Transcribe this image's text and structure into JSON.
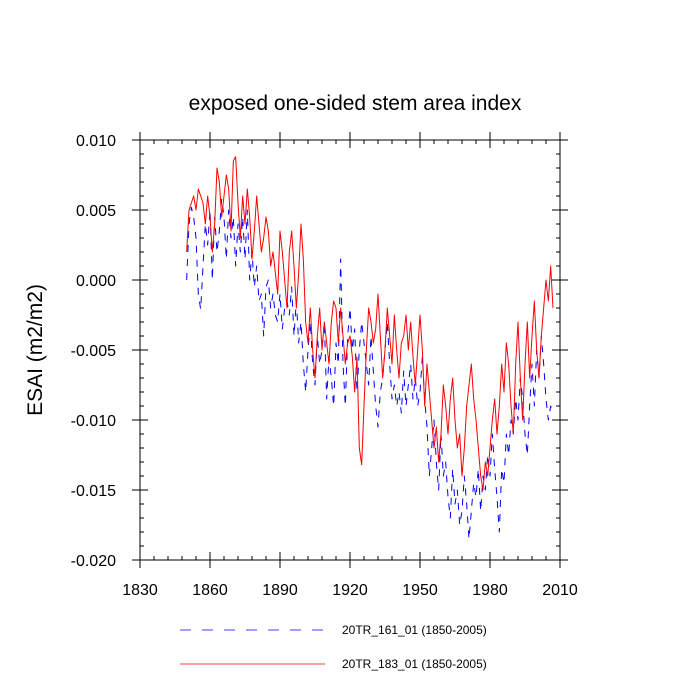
{
  "chart_data": {
    "type": "line",
    "title": "exposed one-sided stem area index",
    "xlabel": "",
    "ylabel": "ESAI  (m2/m2)",
    "xlim": [
      1830,
      2010
    ],
    "ylim": [
      -0.02,
      0.01
    ],
    "x_ticks": [
      1830,
      1860,
      1890,
      1920,
      1950,
      1980,
      2010
    ],
    "y_ticks": [
      -0.02,
      -0.015,
      -0.01,
      -0.005,
      0.0,
      0.005,
      0.01
    ],
    "x_tick_labels": [
      "1830",
      "1860",
      "1890",
      "1920",
      "1950",
      "1980",
      "2010"
    ],
    "y_tick_labels": [
      "-0.020",
      "-0.015",
      "-0.010",
      "-0.005",
      "0.000",
      "0.005",
      "0.010"
    ],
    "legend_position": "bottom",
    "series": [
      {
        "name": "20TR_161_01 (1850-2005)",
        "color": "#0000ff",
        "style": "dashed",
        "x_start": 1850,
        "values": [
          0.0,
          0.004,
          0.0052,
          0.0045,
          0.003,
          -0.001,
          -0.0021,
          0.001,
          0.004,
          0.0025,
          0.005,
          0.0,
          0.0045,
          0.002,
          0.0035,
          0.0058,
          0.0045,
          0.0015,
          0.005,
          0.003,
          0.0045,
          0.001,
          0.004,
          0.002,
          0.0045,
          0.0015,
          0.005,
          0.0,
          0.002,
          -0.0005,
          0.001,
          -0.0015,
          -0.001,
          -0.004,
          -0.0005,
          0.0,
          -0.002,
          -0.001,
          -0.0025,
          -0.003,
          -0.001,
          -0.0035,
          -0.002,
          -0.0015,
          -0.0025,
          -0.0005,
          -0.004,
          -0.0015,
          -0.0045,
          -0.003,
          -0.006,
          -0.008,
          -0.005,
          -0.003,
          -0.006,
          -0.0075,
          -0.004,
          -0.006,
          -0.005,
          -0.003,
          -0.0085,
          -0.0055,
          -0.007,
          -0.009,
          -0.0045,
          -0.006,
          0.0015,
          -0.006,
          -0.009,
          -0.004,
          -0.002,
          -0.005,
          -0.0035,
          -0.008,
          -0.005,
          -0.003,
          -0.0045,
          -0.006,
          -0.0075,
          -0.004,
          -0.0065,
          -0.009,
          -0.0105,
          -0.008,
          -0.007,
          -0.005,
          -0.003,
          -0.006,
          -0.0085,
          -0.0075,
          -0.009,
          -0.008,
          -0.0095,
          -0.0065,
          -0.009,
          -0.0075,
          -0.006,
          -0.0085,
          -0.007,
          -0.009,
          -0.008,
          -0.0055,
          -0.0085,
          -0.0105,
          -0.014,
          -0.012,
          -0.01,
          -0.013,
          -0.015,
          -0.011,
          -0.014,
          -0.013,
          -0.0155,
          -0.017,
          -0.0135,
          -0.016,
          -0.015,
          -0.0175,
          -0.0165,
          -0.014,
          -0.016,
          -0.0185,
          -0.0165,
          -0.0145,
          -0.0155,
          -0.0135,
          -0.0165,
          -0.014,
          -0.015,
          -0.0125,
          -0.014,
          -0.011,
          -0.0135,
          -0.0155,
          -0.018,
          -0.0135,
          -0.0145,
          -0.011,
          -0.0125,
          -0.01,
          -0.011,
          -0.0085,
          -0.01,
          -0.007,
          -0.0085,
          -0.011,
          -0.0125,
          -0.009,
          -0.006,
          -0.009,
          -0.005,
          -0.007,
          -0.004,
          -0.006,
          -0.0085,
          -0.01,
          -0.009,
          -0.0095
        ]
      },
      {
        "name": "20TR_183_01 (1850-2005)",
        "color": "#ff0000",
        "style": "solid",
        "x_start": 1850,
        "values": [
          0.002,
          0.005,
          0.0055,
          0.006,
          0.005,
          0.0065,
          0.006,
          0.0055,
          0.004,
          0.006,
          0.0045,
          0.002,
          0.004,
          0.008,
          0.007,
          0.0045,
          0.006,
          0.0075,
          0.0065,
          0.0035,
          0.0085,
          0.0088,
          0.0055,
          0.003,
          0.006,
          0.004,
          0.0065,
          0.0045,
          0.0015,
          0.0035,
          0.006,
          0.004,
          0.002,
          0.003,
          0.0045,
          0.0035,
          0.001,
          0.002,
          0.0005,
          -0.001,
          0.0035,
          0.002,
          0.0,
          -0.002,
          0.002,
          0.0035,
          0.001,
          -0.002,
          0.0005,
          0.004,
          0.0015,
          -0.003,
          -0.0045,
          -0.002,
          -0.005,
          -0.007,
          -0.004,
          -0.002,
          -0.005,
          -0.003,
          -0.0045,
          -0.006,
          -0.003,
          -0.0015,
          -0.002,
          -0.0045,
          -0.002,
          -0.004,
          -0.006,
          -0.0045,
          -0.004,
          -0.0055,
          -0.008,
          -0.0055,
          -0.012,
          -0.0132,
          -0.009,
          -0.005,
          -0.002,
          -0.003,
          -0.0045,
          -0.0035,
          -0.001,
          -0.004,
          -0.007,
          -0.005,
          -0.002,
          -0.004,
          -0.006,
          -0.0025,
          -0.005,
          -0.007,
          -0.0045,
          -0.004,
          -0.0025,
          -0.005,
          -0.003,
          -0.0055,
          -0.0075,
          -0.005,
          -0.0025,
          -0.005,
          -0.009,
          -0.006,
          -0.008,
          -0.01,
          -0.012,
          -0.0105,
          -0.013,
          -0.011,
          -0.0075,
          -0.009,
          -0.011,
          -0.0085,
          -0.007,
          -0.01,
          -0.012,
          -0.011,
          -0.014,
          -0.012,
          -0.009,
          -0.0075,
          -0.006,
          -0.0085,
          -0.01,
          -0.012,
          -0.014,
          -0.015,
          -0.013,
          -0.014,
          -0.012,
          -0.01,
          -0.0085,
          -0.011,
          -0.009,
          -0.006,
          -0.008,
          -0.0045,
          -0.006,
          -0.009,
          -0.011,
          -0.006,
          -0.003,
          -0.007,
          -0.01,
          -0.006,
          -0.003,
          -0.007,
          -0.004,
          -0.0015,
          -0.005,
          -0.007,
          -0.004,
          -0.002,
          0.0,
          -0.0015,
          0.001,
          -0.002
        ]
      }
    ]
  }
}
